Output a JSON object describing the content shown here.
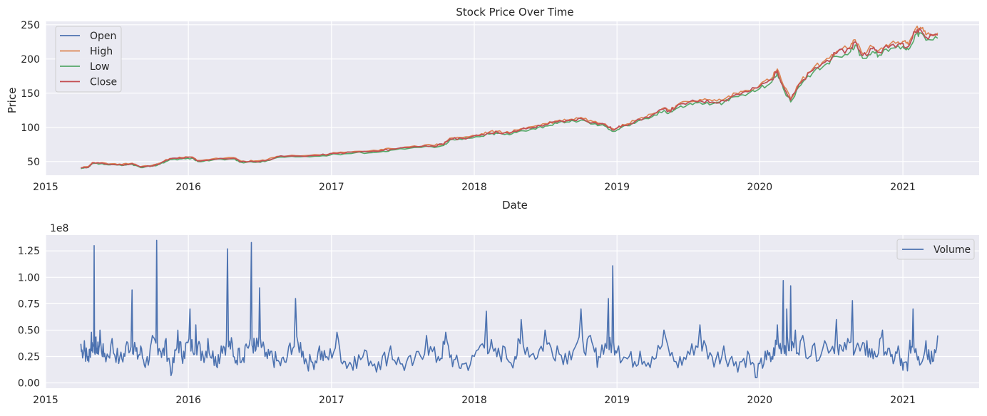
{
  "chart_data": [
    {
      "type": "line",
      "title": "Stock Price Over Time",
      "xlabel": "Date",
      "ylabel": "Price",
      "xlim": [
        "2015-01-01",
        "2021-07-15"
      ],
      "ylim": [
        30,
        255
      ],
      "yticks": [
        50,
        100,
        150,
        200,
        250
      ],
      "xticks": [
        "2015",
        "2016",
        "2017",
        "2018",
        "2019",
        "2020",
        "2021"
      ],
      "grid": true,
      "legend": "top-left",
      "series": [
        {
          "name": "Open",
          "color": "#4c72b0"
        },
        {
          "name": "High",
          "color": "#dd8452"
        },
        {
          "name": "Low",
          "color": "#55a868"
        },
        {
          "name": "Close",
          "color": "#c44e52"
        }
      ],
      "x": [
        "2015-04-01",
        "2015-04-20",
        "2015-05-01",
        "2015-05-20",
        "2015-06-15",
        "2015-07-15",
        "2015-08-10",
        "2015-09-01",
        "2015-10-01",
        "2015-10-20",
        "2015-11-15",
        "2015-12-15",
        "2016-01-10",
        "2016-01-25",
        "2016-03-01",
        "2016-04-25",
        "2016-05-15",
        "2016-06-15",
        "2016-07-15",
        "2016-08-15",
        "2016-10-01",
        "2016-12-01",
        "2017-01-15",
        "2017-03-01",
        "2017-05-01",
        "2017-06-01",
        "2017-08-01",
        "2017-09-15",
        "2017-10-15",
        "2017-10-30",
        "2017-12-01",
        "2018-01-15",
        "2018-02-08",
        "2018-03-01",
        "2018-04-01",
        "2018-05-01",
        "2018-06-01",
        "2018-07-01",
        "2018-08-01",
        "2018-09-01",
        "2018-10-01",
        "2018-11-01",
        "2018-12-01",
        "2018-12-24",
        "2019-01-15",
        "2019-02-15",
        "2019-04-01",
        "2019-05-01",
        "2019-05-15",
        "2019-06-01",
        "2019-07-01",
        "2019-08-01",
        "2019-09-01",
        "2019-10-01",
        "2019-11-01",
        "2019-12-01",
        "2020-01-01",
        "2020-02-01",
        "2020-02-15",
        "2020-03-01",
        "2020-03-20",
        "2020-04-15",
        "2020-05-15",
        "2020-06-15",
        "2020-07-15",
        "2020-08-20",
        "2020-09-01",
        "2020-09-20",
        "2020-10-15",
        "2020-11-01",
        "2020-12-01",
        "2021-01-01",
        "2021-01-15",
        "2021-02-01",
        "2021-02-15",
        "2021-03-01",
        "2021-03-31"
      ],
      "close": [
        40.5,
        42,
        48,
        47.5,
        46,
        45,
        47,
        42,
        44,
        47,
        54,
        55,
        56,
        51,
        53,
        55,
        50,
        50,
        51,
        57,
        58,
        59,
        62,
        64,
        65,
        68,
        72,
        73,
        75,
        83,
        84,
        88,
        92,
        93,
        91,
        97,
        100,
        104,
        108,
        110,
        113,
        107,
        104,
        96,
        103,
        108,
        118,
        127,
        124,
        130,
        136,
        139,
        137,
        139,
        148,
        152,
        160,
        170,
        183,
        160,
        140,
        165,
        183,
        195,
        208,
        215,
        225,
        205,
        215,
        210,
        220,
        223,
        218,
        240,
        243,
        232,
        235
      ],
      "low_offset": -3,
      "high_offset": 2
    },
    {
      "type": "line",
      "title": "",
      "xlabel": "",
      "ylabel": "",
      "offset_text": "1e8",
      "xlim": [
        "2015-01-01",
        "2021-07-15"
      ],
      "ylim": [
        -0.05,
        1.4
      ],
      "yticks": [
        "0.00",
        "0.25",
        "0.50",
        "0.75",
        "1.00",
        "1.25"
      ],
      "xticks": [
        "2015",
        "2016",
        "2017",
        "2018",
        "2019",
        "2020",
        "2021"
      ],
      "grid": true,
      "legend": "top-right",
      "series": [
        {
          "name": "Volume",
          "color": "#4c72b0"
        }
      ],
      "x": [
        "2015-04-01",
        "2015-04-10",
        "2015-04-20",
        "2015-04-28",
        "2015-05-05",
        "2015-05-12",
        "2015-05-20",
        "2015-06-01",
        "2015-06-20",
        "2015-07-10",
        "2015-07-25",
        "2015-08-10",
        "2015-08-20",
        "2015-09-01",
        "2015-09-15",
        "2015-10-01",
        "2015-10-12",
        "2015-10-22",
        "2015-11-05",
        "2015-11-20",
        "2015-12-05",
        "2015-12-20",
        "2016-01-05",
        "2016-01-20",
        "2016-02-05",
        "2016-02-20",
        "2016-03-10",
        "2016-03-25",
        "2016-04-10",
        "2016-04-25",
        "2016-05-10",
        "2016-05-25",
        "2016-06-10",
        "2016-06-20",
        "2016-07-01",
        "2016-07-15",
        "2016-08-01",
        "2016-08-20",
        "2016-09-10",
        "2016-10-01",
        "2016-10-20",
        "2016-11-10",
        "2016-12-01",
        "2016-12-20",
        "2017-01-15",
        "2017-02-05",
        "2017-03-01",
        "2017-04-01",
        "2017-05-01",
        "2017-06-01",
        "2017-07-01",
        "2017-08-01",
        "2017-09-01",
        "2017-10-01",
        "2017-10-20",
        "2017-11-10",
        "2017-12-01",
        "2018-01-01",
        "2018-02-01",
        "2018-02-20",
        "2018-03-15",
        "2018-04-15",
        "2018-05-01",
        "2018-06-01",
        "2018-07-01",
        "2018-08-01",
        "2018-09-01",
        "2018-10-01",
        "2018-10-25",
        "2018-11-15",
        "2018-12-10",
        "2018-12-21",
        "2019-01-05",
        "2019-02-01",
        "2019-03-01",
        "2019-04-01",
        "2019-05-01",
        "2019-06-01",
        "2019-07-01",
        "2019-08-01",
        "2019-09-01",
        "2019-10-01",
        "2019-11-01",
        "2019-12-01",
        "2019-12-25",
        "2020-01-15",
        "2020-02-01",
        "2020-02-15",
        "2020-03-01",
        "2020-03-10",
        "2020-03-20",
        "2020-04-01",
        "2020-04-20",
        "2020-05-15",
        "2020-06-15",
        "2020-07-15",
        "2020-08-01",
        "2020-08-25",
        "2020-09-10",
        "2020-10-01",
        "2020-10-20",
        "2020-11-10",
        "2020-12-01",
        "2020-12-20",
        "2021-01-01",
        "2021-01-15",
        "2021-01-27",
        "2021-02-10",
        "2021-03-01",
        "2021-03-15",
        "2021-03-31"
      ],
      "values": [
        0.37,
        0.4,
        0.25,
        0.48,
        1.3,
        0.33,
        0.5,
        0.28,
        0.42,
        0.25,
        0.35,
        0.88,
        0.3,
        0.35,
        0.2,
        0.45,
        1.35,
        0.3,
        0.42,
        0.1,
        0.5,
        0.3,
        0.7,
        0.55,
        0.3,
        0.42,
        0.25,
        0.35,
        1.27,
        0.25,
        0.33,
        0.35,
        1.33,
        0.3,
        0.9,
        0.25,
        0.3,
        0.2,
        0.25,
        0.8,
        0.3,
        0.2,
        0.35,
        0.25,
        0.48,
        0.2,
        0.25,
        0.3,
        0.2,
        0.35,
        0.18,
        0.22,
        0.45,
        0.25,
        0.48,
        0.22,
        0.18,
        0.25,
        0.68,
        0.3,
        0.35,
        0.25,
        0.6,
        0.28,
        0.5,
        0.35,
        0.3,
        0.7,
        0.45,
        0.25,
        0.8,
        1.11,
        0.35,
        0.25,
        0.3,
        0.25,
        0.5,
        0.2,
        0.3,
        0.55,
        0.25,
        0.35,
        0.2,
        0.3,
        0.05,
        0.3,
        0.25,
        0.55,
        0.97,
        0.7,
        0.92,
        0.5,
        0.45,
        0.35,
        0.4,
        0.6,
        0.3,
        0.78,
        0.35,
        0.4,
        0.3,
        0.5,
        0.25,
        0.35,
        0.12,
        0.25,
        0.7,
        0.25,
        0.4,
        0.3,
        0.45
      ]
    }
  ]
}
